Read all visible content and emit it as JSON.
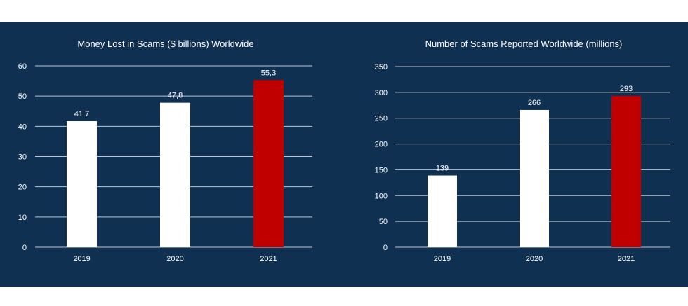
{
  "colors": {
    "panel_bg": "#0f3050",
    "grid": "#b9c6d4",
    "bar_default": "#ffffff",
    "bar_highlight": "#c00000",
    "text": "#ffffff"
  },
  "chart_data": [
    {
      "type": "bar",
      "title": "Money Lost in Scams ($ billions) Worldwide",
      "categories": [
        "2019",
        "2020",
        "2021"
      ],
      "values": [
        41.7,
        47.8,
        55.3
      ],
      "value_labels": [
        "41,7",
        "47,8",
        "55,3"
      ],
      "yticks": [
        "0",
        "10",
        "20",
        "30",
        "40",
        "50",
        "60"
      ],
      "ylim": [
        0,
        60
      ],
      "ystep": 10,
      "grid": true,
      "highlight_index": 2
    },
    {
      "type": "bar",
      "title": "Number of Scams Reported Worldwide (millions)",
      "categories": [
        "2019",
        "2020",
        "2021"
      ],
      "values": [
        139,
        266,
        293
      ],
      "value_labels": [
        "139",
        "266",
        "293"
      ],
      "yticks": [
        "0",
        "50",
        "100",
        "150",
        "200",
        "250",
        "300",
        "350"
      ],
      "ylim": [
        0,
        350
      ],
      "ystep": 50,
      "grid": true,
      "highlight_index": 2
    }
  ]
}
